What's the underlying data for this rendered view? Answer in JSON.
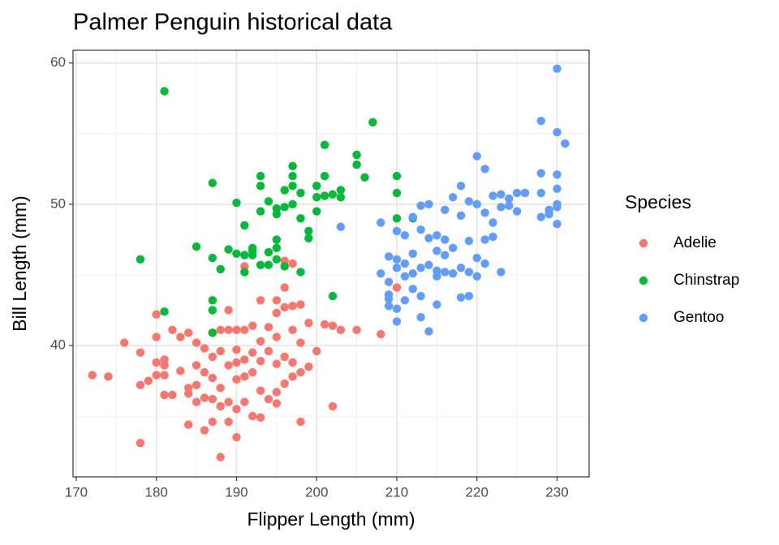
{
  "chart_data": {
    "type": "scatter",
    "title": "Palmer Penguin historical data",
    "x_label": "Flipper Length (mm)",
    "y_label": "Bill Length (mm)",
    "legend_title": "Species",
    "legend": "right",
    "grid": true,
    "xlim": [
      169.6,
      234.0
    ],
    "ylim": [
      30.7,
      60.9
    ],
    "xticks": [
      170,
      180,
      190,
      200,
      210,
      220,
      230
    ],
    "yticks": [
      40,
      50,
      60
    ],
    "minor_xticks": [
      175,
      185,
      195,
      205,
      215,
      225
    ],
    "minor_yticks": [
      35,
      45,
      55
    ],
    "series": [
      {
        "name": "Adelie",
        "color": "#F8766D",
        "x": [
          172,
          174,
          176,
          178,
          178,
          178,
          179,
          180,
          180,
          180,
          180,
          181,
          181,
          181,
          181,
          182,
          182,
          183,
          183,
          184,
          184,
          184,
          184,
          185,
          185,
          185,
          185,
          186,
          186,
          186,
          186,
          187,
          187,
          187,
          187,
          187,
          188,
          188,
          188,
          188,
          189,
          189,
          189,
          189,
          190,
          190,
          190,
          190,
          190,
          190,
          191,
          191,
          191,
          191,
          191,
          192,
          192,
          192,
          192,
          193,
          193,
          193,
          193,
          193,
          194,
          194,
          194,
          195,
          195,
          195,
          195,
          195,
          196,
          196,
          196,
          196,
          196,
          197,
          197,
          197,
          197,
          198,
          198,
          198,
          198,
          199,
          199,
          200,
          201,
          202,
          202,
          203,
          205,
          208,
          210,
          197,
          188,
          195,
          189
        ],
        "values": [
          37.9,
          37.8,
          40.2,
          39.5,
          37.2,
          33.1,
          37.5,
          42.2,
          40.6,
          38.8,
          37.9,
          39.0,
          38.6,
          37.9,
          36.5,
          41.1,
          36.5,
          40.6,
          38.2,
          40.9,
          37.0,
          36.6,
          34.4,
          40.2,
          38.6,
          37.2,
          36.0,
          39.8,
          38.1,
          36.3,
          34.0,
          40.9,
          39.2,
          37.7,
          36.2,
          34.6,
          41.1,
          39.6,
          37.0,
          35.7,
          41.1,
          38.6,
          36.0,
          34.6,
          41.1,
          39.7,
          38.8,
          37.6,
          35.5,
          33.5,
          41.1,
          39.0,
          37.8,
          36.0,
          45.6,
          41.4,
          39.5,
          38.1,
          35.0,
          43.2,
          40.3,
          38.9,
          36.8,
          34.9,
          41.3,
          39.6,
          36.2,
          42.3,
          40.6,
          38.7,
          36.7,
          35.9,
          42.7,
          39.2,
          37.3,
          46.0,
          44.1,
          42.8,
          41.1,
          38.8,
          37.8,
          42.9,
          40.2,
          38.1,
          34.6,
          41.6,
          38.5,
          39.6,
          41.5,
          41.4,
          35.7,
          41.1,
          41.1,
          40.8,
          44.1,
          45.8,
          32.1,
          43.2,
          42.5
        ]
      },
      {
        "name": "Chinstrap",
        "color": "#00BA38",
        "x": [
          178,
          181,
          181,
          185,
          187,
          187,
          187,
          187,
          187,
          188,
          189,
          190,
          190,
          191,
          191,
          191,
          192,
          192,
          192,
          193,
          193,
          193,
          193,
          194,
          194,
          194,
          195,
          195,
          195,
          195,
          195,
          196,
          196,
          196,
          197,
          197,
          197,
          197,
          198,
          198,
          198,
          199,
          199,
          200,
          200,
          200,
          201,
          201,
          201,
          202,
          202,
          203,
          203,
          205,
          205,
          206,
          207,
          210,
          210,
          210,
          212
        ],
        "values": [
          46.1,
          58.0,
          42.4,
          47.0,
          51.5,
          46.2,
          43.2,
          42.5,
          40.9,
          45.4,
          46.8,
          50.1,
          46.5,
          48.5,
          46.4,
          45.2,
          46.9,
          46.7,
          46.4,
          52.0,
          51.3,
          49.5,
          45.7,
          50.2,
          46.6,
          45.7,
          49.7,
          49.3,
          47.5,
          46.9,
          46.1,
          51.0,
          49.8,
          45.6,
          52.7,
          52.0,
          51.3,
          50.0,
          50.8,
          49.0,
          45.2,
          48.1,
          47.6,
          51.3,
          50.5,
          49.5,
          54.2,
          52.0,
          50.6,
          50.7,
          43.5,
          51.0,
          50.5,
          53.5,
          52.8,
          51.9,
          55.8,
          52.0,
          50.8,
          49.0,
          49.0
        ]
      },
      {
        "name": "Gentoo",
        "color": "#619CFF",
        "x": [
          203,
          208,
          208,
          209,
          209,
          209,
          209,
          209,
          210,
          210,
          210,
          210,
          210,
          211,
          211,
          211,
          211,
          212,
          212,
          212,
          212,
          213,
          213,
          213,
          213,
          213,
          214,
          214,
          214,
          214,
          215,
          215,
          215,
          215,
          215,
          216,
          216,
          216,
          216,
          217,
          217,
          217,
          218,
          218,
          218,
          218,
          219,
          219,
          219,
          219,
          220,
          220,
          220,
          220,
          221,
          221,
          221,
          221,
          222,
          222,
          222,
          223,
          223,
          223,
          224,
          224,
          225,
          225,
          226,
          228,
          228,
          228,
          228,
          229,
          229,
          230,
          230,
          230,
          230,
          230,
          230,
          230,
          231
        ],
        "values": [
          48.4,
          45.1,
          48.7,
          46.3,
          44.5,
          43.6,
          43.3,
          42.8,
          48.1,
          46.1,
          45.5,
          42.6,
          41.7,
          47.8,
          45.8,
          44.9,
          43.2,
          49.1,
          46.5,
          45.1,
          44.0,
          49.9,
          48.2,
          45.5,
          43.5,
          42.0,
          50.0,
          47.6,
          45.7,
          41.0,
          47.8,
          46.7,
          45.3,
          44.9,
          42.9,
          49.6,
          47.5,
          46.4,
          45.2,
          50.5,
          46.9,
          45.1,
          51.3,
          49.2,
          45.5,
          43.4,
          50.2,
          47.4,
          45.2,
          43.5,
          53.4,
          50.0,
          46.2,
          44.9,
          52.5,
          49.4,
          47.5,
          45.8,
          50.6,
          48.7,
          47.7,
          50.7,
          49.8,
          45.2,
          50.4,
          49.9,
          50.8,
          49.5,
          50.8,
          55.9,
          52.2,
          50.8,
          49.1,
          49.6,
          49.3,
          59.6,
          55.1,
          52.1,
          51.1,
          50.0,
          49.8,
          48.6,
          54.3
        ]
      }
    ]
  }
}
